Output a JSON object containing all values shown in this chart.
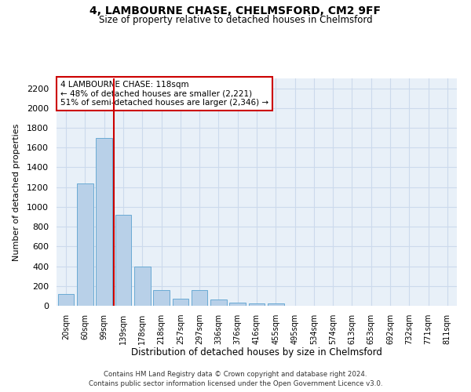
{
  "title": "4, LAMBOURNE CHASE, CHELMSFORD, CM2 9FF",
  "subtitle": "Size of property relative to detached houses in Chelmsford",
  "xlabel": "Distribution of detached houses by size in Chelmsford",
  "ylabel": "Number of detached properties",
  "bar_color": "#b8d0e8",
  "bar_edge_color": "#6aaad4",
  "grid_color": "#ccdaec",
  "background_color": "#e8f0f8",
  "vline_color": "#cc0000",
  "vline_x_index": 2.5,
  "annotation_text": "4 LAMBOURNE CHASE: 118sqm\n← 48% of detached houses are smaller (2,221)\n51% of semi-detached houses are larger (2,346) →",
  "annotation_box_color": "#ffffff",
  "annotation_border_color": "#cc0000",
  "categories": [
    "20sqm",
    "60sqm",
    "99sqm",
    "139sqm",
    "178sqm",
    "218sqm",
    "257sqm",
    "297sqm",
    "336sqm",
    "376sqm",
    "416sqm",
    "455sqm",
    "495sqm",
    "534sqm",
    "574sqm",
    "613sqm",
    "653sqm",
    "692sqm",
    "732sqm",
    "771sqm",
    "811sqm"
  ],
  "values": [
    120,
    1240,
    1700,
    920,
    400,
    155,
    70,
    155,
    65,
    30,
    25,
    20,
    0,
    0,
    0,
    0,
    0,
    0,
    0,
    0,
    0
  ],
  "ylim": [
    0,
    2300
  ],
  "yticks": [
    0,
    200,
    400,
    600,
    800,
    1000,
    1200,
    1400,
    1600,
    1800,
    2000,
    2200
  ],
  "footer1": "Contains HM Land Registry data © Crown copyright and database right 2024.",
  "footer2": "Contains public sector information licensed under the Open Government Licence v3.0."
}
